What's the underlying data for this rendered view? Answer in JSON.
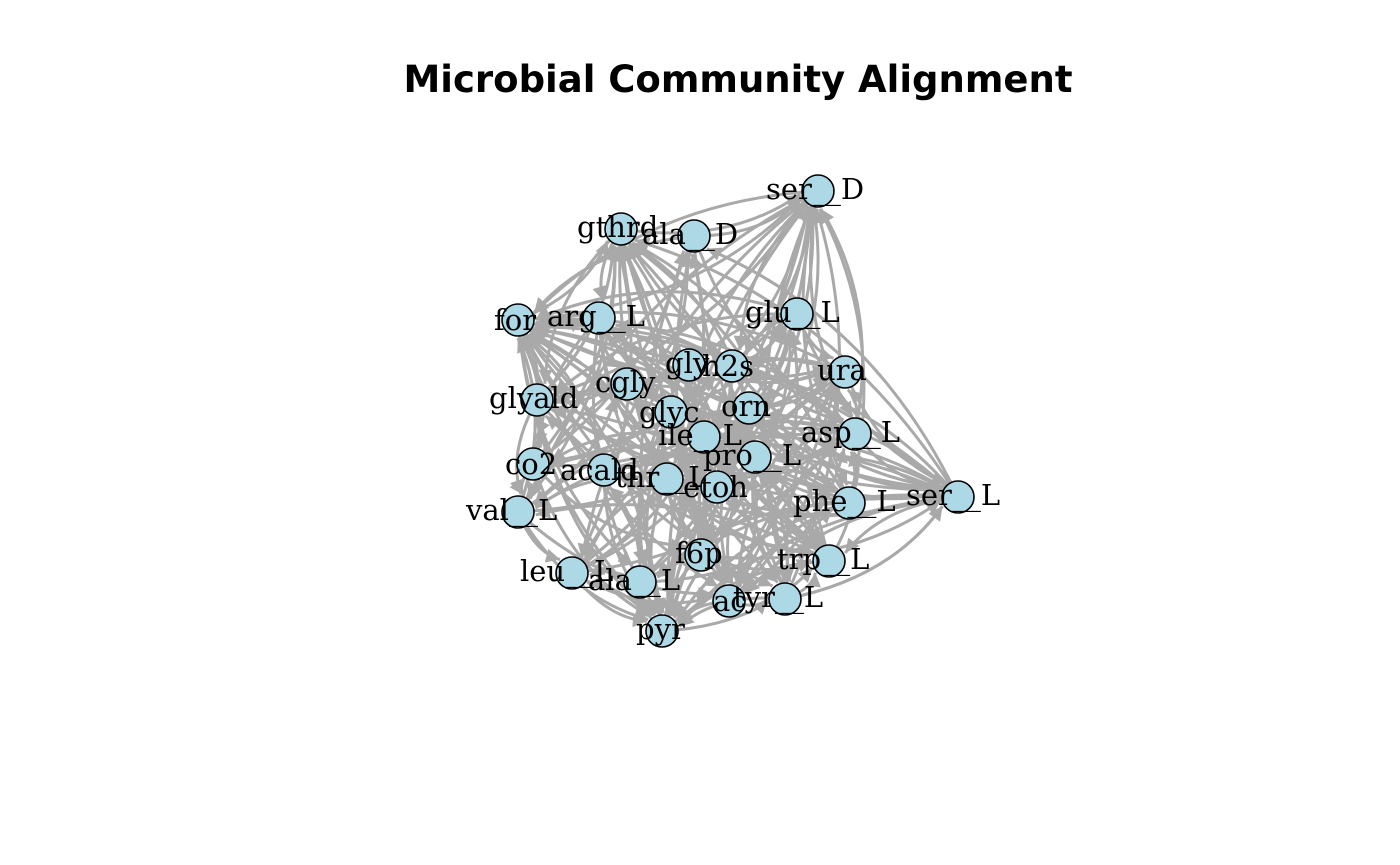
{
  "title": "Microbial Community Alignment",
  "colors": {
    "node_fill": "#add8e6",
    "node_stroke": "#000000",
    "edge": "#a9a9a9"
  },
  "nodes": [
    {
      "id": "ser__D",
      "label": "ser__D"
    },
    {
      "id": "gthrd",
      "label": "gthrd"
    },
    {
      "id": "ala__D",
      "label": "ala__D"
    },
    {
      "id": "for",
      "label": "for"
    },
    {
      "id": "arg__L",
      "label": "arg__L"
    },
    {
      "id": "glu__L",
      "label": "glu__L"
    },
    {
      "id": "gly",
      "label": "gly"
    },
    {
      "id": "h2s",
      "label": "h2s"
    },
    {
      "id": "ura",
      "label": "ura"
    },
    {
      "id": "cgly",
      "label": "cgly"
    },
    {
      "id": "glyald",
      "label": "glyald"
    },
    {
      "id": "glyc",
      "label": "glyc"
    },
    {
      "id": "orn",
      "label": "orn"
    },
    {
      "id": "ile__L",
      "label": "ile__L"
    },
    {
      "id": "asp__L",
      "label": "asp__L"
    },
    {
      "id": "pro__L",
      "label": "pro__L"
    },
    {
      "id": "co2",
      "label": "co2"
    },
    {
      "id": "acald",
      "label": "acald"
    },
    {
      "id": "thr__L",
      "label": "thr__L"
    },
    {
      "id": "etoh",
      "label": "etoh"
    },
    {
      "id": "ser__L",
      "label": "ser__L"
    },
    {
      "id": "phe__L",
      "label": "phe__L"
    },
    {
      "id": "val__L",
      "label": "val__L"
    },
    {
      "id": "f6p",
      "label": "f6p"
    },
    {
      "id": "trp__L",
      "label": "trp__L"
    },
    {
      "id": "leu__L",
      "label": "leu__L"
    },
    {
      "id": "ala__L",
      "label": "ala__L"
    },
    {
      "id": "ac",
      "label": "ac"
    },
    {
      "id": "tyr__L",
      "label": "tyr__L"
    },
    {
      "id": "pyr",
      "label": "pyr"
    }
  ]
}
